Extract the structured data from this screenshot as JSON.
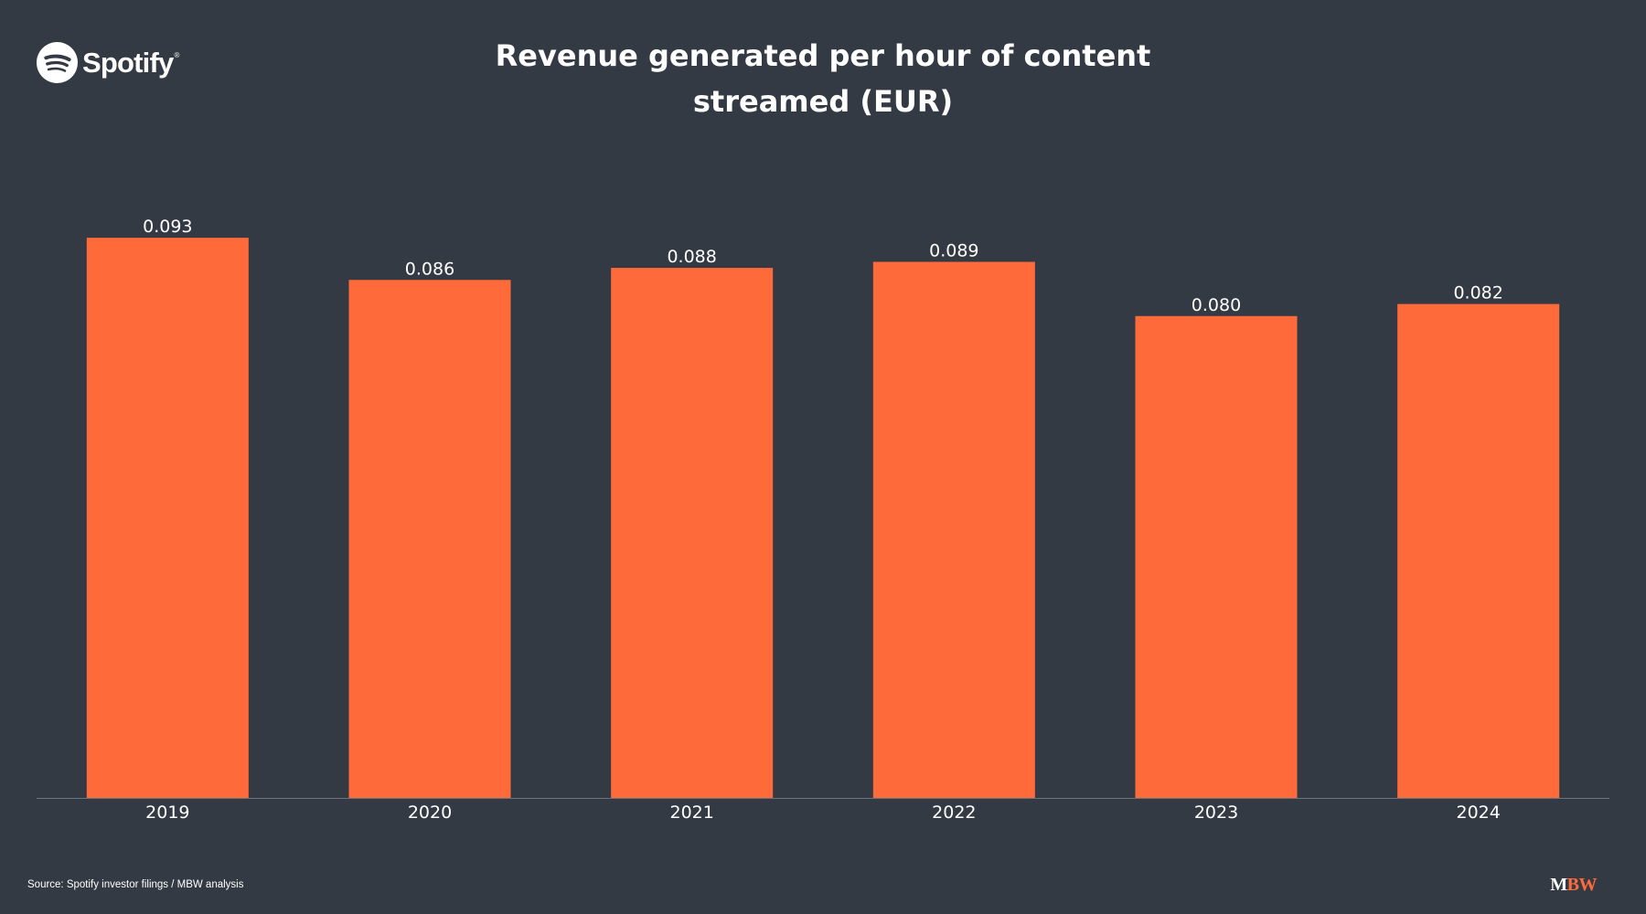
{
  "brand": {
    "name": "Spotify",
    "registered": "®",
    "icon": "spotify-logo-icon"
  },
  "chart_data": {
    "type": "bar",
    "title_lines": [
      "Revenue generated per hour of content",
      "streamed (EUR)"
    ],
    "categories": [
      "2019",
      "2020",
      "2021",
      "2022",
      "2023",
      "2024"
    ],
    "values": [
      0.093,
      0.086,
      0.088,
      0.089,
      0.08,
      0.082
    ],
    "value_labels": [
      "0.093",
      "0.086",
      "0.088",
      "0.089",
      "0.080",
      "0.082"
    ],
    "xlabel": "",
    "ylabel": "",
    "ylim": [
      0,
      0.1
    ],
    "grid": false,
    "legend": "none",
    "colors": {
      "bar": "#ff6a3a",
      "background": "#343a43",
      "text": "#ffffff",
      "axis": "#6c7480"
    }
  },
  "footer": {
    "source": "Source: Spotify investor filings / MBW analysis",
    "logo_m": "M",
    "logo_bw": "BW"
  }
}
